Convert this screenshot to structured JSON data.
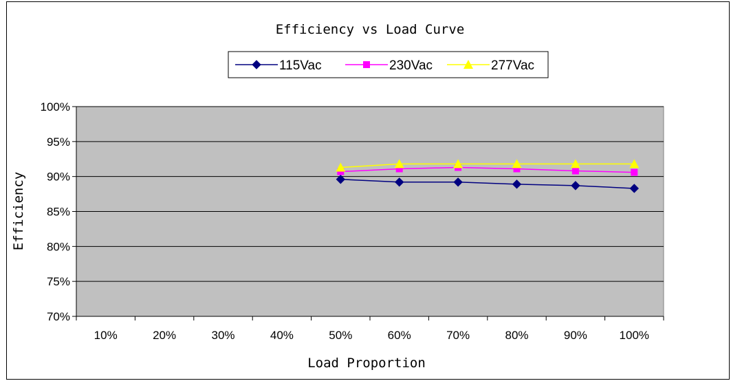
{
  "chart_data": {
    "type": "line",
    "title": "Efficiency vs Load Curve",
    "xlabel": "Load Proportion",
    "ylabel": "Efficiency",
    "categories": [
      "10%",
      "20%",
      "30%",
      "40%",
      "50%",
      "60%",
      "70%",
      "80%",
      "90%",
      "100%"
    ],
    "yticks": [
      "70%",
      "75%",
      "80%",
      "85%",
      "90%",
      "95%",
      "100%"
    ],
    "ylim": [
      70,
      100
    ],
    "grid": true,
    "legend_position": "top",
    "plot_background": "#c0c0c0",
    "series": [
      {
        "name": "115Vac",
        "color": "#000080",
        "marker": "diamond",
        "values": [
          null,
          null,
          null,
          null,
          89.6,
          89.2,
          89.2,
          88.9,
          88.7,
          88.3
        ]
      },
      {
        "name": "230Vac",
        "color": "#ff00ff",
        "marker": "square",
        "values": [
          null,
          null,
          null,
          null,
          90.7,
          91.1,
          91.3,
          91.1,
          90.8,
          90.6
        ]
      },
      {
        "name": "277Vac",
        "color": "#ffff00",
        "marker": "triangle",
        "values": [
          null,
          null,
          null,
          null,
          91.3,
          91.8,
          91.8,
          91.8,
          91.8,
          91.8
        ]
      }
    ]
  }
}
